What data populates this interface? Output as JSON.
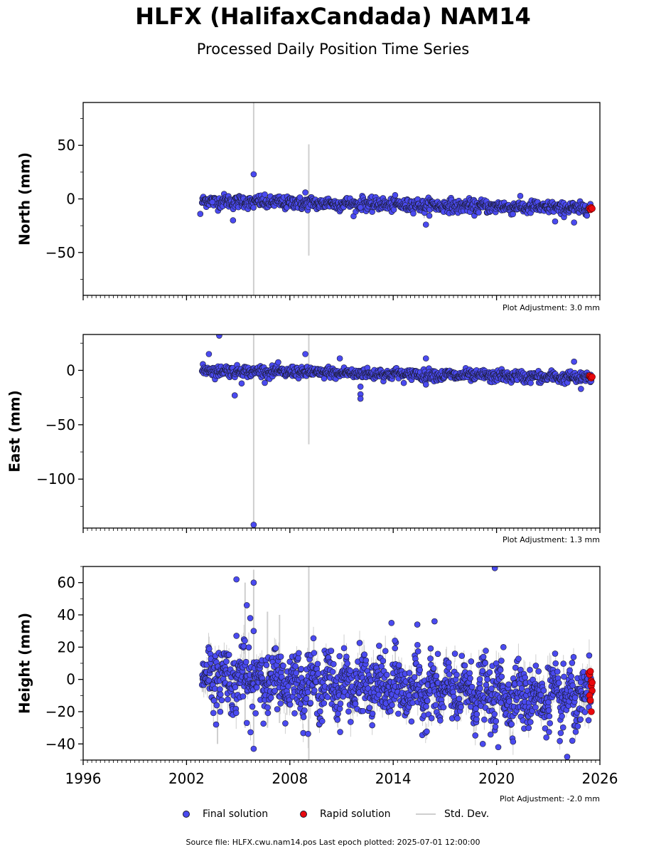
{
  "title": "HLFX (HalifaxCandada) NAM14",
  "subtitle": "Processed Daily Position Time Series",
  "legend": {
    "final": "Final solution",
    "rapid": "Rapid solution",
    "std": "Std. Dev."
  },
  "colors": {
    "final": "#4a4af0",
    "rapid": "#e8080e",
    "std": "#cfcfcf",
    "marker_edge": "#1a1a2e"
  },
  "footer": "Source file: HLFX.cwu.nam14.pos  Last epoch plotted: 2025-07-01 12:00:00",
  "chart_data": [
    {
      "type": "scatter",
      "ylabel": "North (mm)",
      "xlim": [
        1996,
        2026
      ],
      "ylim": [
        -90,
        90
      ],
      "yticks": [
        -50,
        0,
        50
      ],
      "adjustment": "Plot Adjustment: 3.0 mm",
      "trend": [
        [
          2002.9,
          -2
        ],
        [
          2025.5,
          -9
        ]
      ],
      "scatter_sd": 3,
      "outliers": [
        [
          2005.9,
          23
        ],
        [
          2004.7,
          -20
        ],
        [
          2002.8,
          -14
        ],
        [
          2008.9,
          6
        ],
        [
          2015.9,
          -24
        ],
        [
          2023.4,
          -21
        ],
        [
          2024.5,
          -22
        ],
        [
          2003.5,
          -3
        ],
        [
          2012.1,
          -8
        ]
      ],
      "std_spikes": [
        [
          2005.9,
          -90,
          90
        ],
        [
          2009.1,
          -53,
          51
        ],
        [
          2015.8,
          -18,
          -2
        ]
      ],
      "rapid_points": [
        [
          2025.4,
          -9
        ],
        [
          2025.45,
          -10
        ],
        [
          2025.5,
          -8
        ],
        [
          2025.55,
          -9
        ]
      ]
    },
    {
      "type": "scatter",
      "ylabel": "East (mm)",
      "xlim": [
        1996,
        2026
      ],
      "ylim": [
        -145,
        33
      ],
      "yticks": [
        -100,
        -50,
        0
      ],
      "adjustment": "Plot Adjustment: 1.3 mm",
      "trend": [
        [
          2002.9,
          0
        ],
        [
          2025.5,
          -7
        ]
      ],
      "scatter_sd": 2.5,
      "outliers": [
        [
          2003.9,
          32
        ],
        [
          2003.3,
          15
        ],
        [
          2004.8,
          -23
        ],
        [
          2005.9,
          -142
        ],
        [
          2008.9,
          15
        ],
        [
          2010.9,
          11
        ],
        [
          2012.1,
          -15
        ],
        [
          2012.1,
          -22
        ],
        [
          2012.1,
          -26
        ],
        [
          2015.9,
          11
        ],
        [
          2015.9,
          -13
        ],
        [
          2024.9,
          -17
        ],
        [
          2024.5,
          8
        ],
        [
          2005.2,
          -12
        ]
      ],
      "std_spikes": [
        [
          2005.9,
          -145,
          33
        ],
        [
          2009.1,
          -68,
          33
        ]
      ],
      "rapid_points": [
        [
          2025.4,
          -5
        ],
        [
          2025.45,
          -6
        ],
        [
          2025.5,
          -7
        ],
        [
          2025.55,
          -6
        ]
      ]
    },
    {
      "type": "scatter",
      "ylabel": "Height (mm)",
      "xlim": [
        1996,
        2026
      ],
      "ylim": [
        -50,
        70
      ],
      "yticks": [
        -40,
        -20,
        0,
        20,
        40,
        60
      ],
      "adjustment": "Plot Adjustment: -2.0 mm",
      "trend": [
        [
          2002.9,
          2
        ],
        [
          2025.5,
          -13
        ]
      ],
      "scatter_sd": 9,
      "outliers": [
        [
          2004.9,
          62
        ],
        [
          2005.9,
          60
        ],
        [
          2005.5,
          46
        ],
        [
          2005.7,
          38
        ],
        [
          2005.9,
          30
        ],
        [
          2004.9,
          27
        ],
        [
          2005.9,
          -43
        ],
        [
          2013.9,
          35
        ],
        [
          2015.4,
          34
        ],
        [
          2016.4,
          36
        ],
        [
          2019.9,
          69
        ],
        [
          2020.4,
          20
        ],
        [
          2023.4,
          16
        ],
        [
          2014.1,
          24
        ],
        [
          2024.1,
          -48
        ],
        [
          2024.4,
          -38
        ],
        [
          2020.1,
          -42
        ],
        [
          2005.5,
          -27
        ],
        [
          2019.2,
          -40
        ]
      ],
      "std_spikes": [
        [
          2009.1,
          -50,
          70
        ],
        [
          2005.4,
          -30,
          60
        ],
        [
          2005.9,
          -45,
          68
        ],
        [
          2003.8,
          -40,
          10
        ],
        [
          2006.7,
          -30,
          42
        ],
        [
          2007.4,
          -27,
          40
        ]
      ],
      "rapid_points": [
        [
          2025.35,
          4
        ],
        [
          2025.4,
          3
        ],
        [
          2025.45,
          5
        ],
        [
          2025.5,
          -1
        ],
        [
          2025.5,
          -4
        ],
        [
          2025.55,
          -7
        ],
        [
          2025.4,
          -10
        ],
        [
          2025.45,
          -13
        ],
        [
          2025.5,
          -20
        ],
        [
          2025.55,
          -2
        ]
      ],
      "xticks": [
        1996,
        2002,
        2008,
        2014,
        2020,
        2026
      ]
    }
  ]
}
